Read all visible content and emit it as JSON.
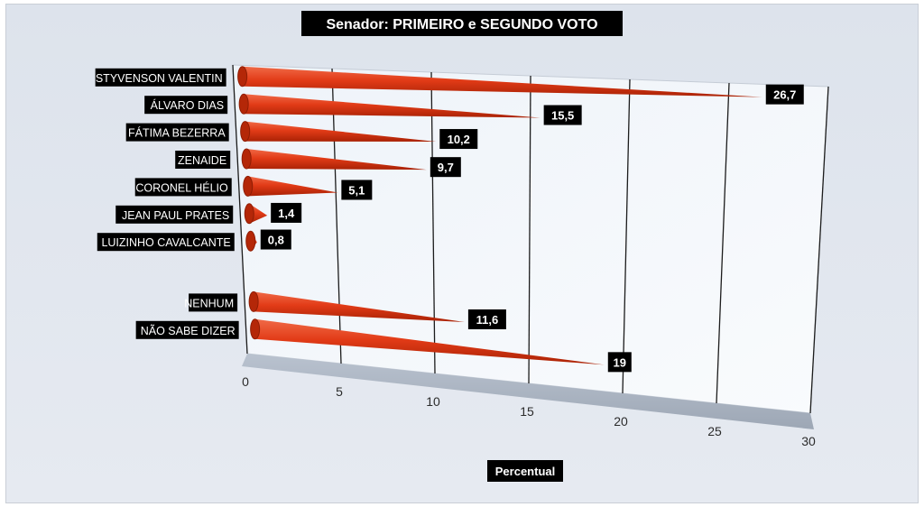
{
  "chart_data": {
    "type": "bar",
    "orientation": "horizontal",
    "style": "3d-cone",
    "title": "Senador: PRIMEIRO e SEGUNDO VOTO",
    "xlabel": "Percentual",
    "ylabel": "",
    "xlim": [
      0,
      30
    ],
    "xticks": [
      "0",
      "5",
      "10",
      "15",
      "20",
      "25",
      "30"
    ],
    "grid": true,
    "legend": "none",
    "bar_color": "#e23b17",
    "label_box_color": "#000000",
    "categories": [
      "STYVENSON VALENTIN",
      "ÁLVARO DIAS",
      "FÁTIMA BEZERRA",
      "ZENAIDE",
      "CORONEL HÉLIO",
      "JEAN PAUL PRATES",
      "LUIZINHO CAVALCANTE",
      "NENHUM",
      "NÃO SABE DIZER"
    ],
    "values": [
      26.7,
      15.5,
      10.2,
      9.7,
      5.1,
      1.4,
      0.8,
      11.6,
      19
    ],
    "value_labels": [
      "26,7",
      "15,5",
      "10,2",
      "9,7",
      "5,1",
      "1,4",
      "0,8",
      "11,6",
      "19"
    ]
  }
}
